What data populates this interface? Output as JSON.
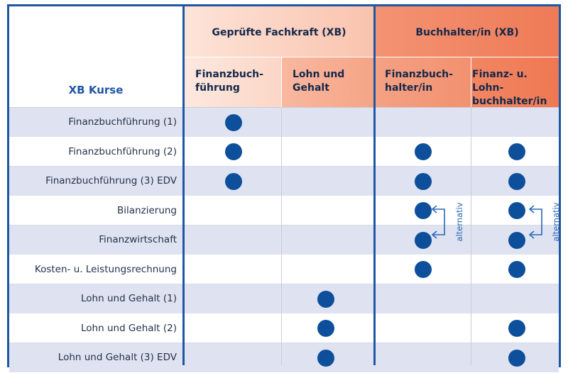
{
  "header": {
    "corner_label": "XB Kurse",
    "group_fachkraft": "Geprüfte Fachkraft (XB)",
    "group_buchhalter": "Buchhalter/in (XB)",
    "columns": [
      {
        "line1": "Finanzbuch-",
        "line2": "führung"
      },
      {
        "line1": "Lohn und",
        "line2": "Gehalt"
      },
      {
        "line1": "Finanzbuch-",
        "line2": "halter/in"
      },
      {
        "line1": "Finanz- u. Lohn-",
        "line2": "buchhalter/in"
      }
    ]
  },
  "rows": [
    {
      "label": "Finanzbuchführung (1)",
      "marks": [
        1,
        0,
        0,
        0
      ]
    },
    {
      "label": "Finanzbuchführung (2)",
      "marks": [
        1,
        0,
        1,
        1
      ]
    },
    {
      "label": "Finanzbuchführung (3) EDV",
      "marks": [
        1,
        0,
        1,
        1
      ]
    },
    {
      "label": "Bilanzierung",
      "marks": [
        0,
        0,
        1,
        1
      ]
    },
    {
      "label": "Finanzwirtschaft",
      "marks": [
        0,
        0,
        1,
        1
      ]
    },
    {
      "label": "Kosten- u. Leistungsrechnung",
      "marks": [
        0,
        0,
        1,
        1
      ]
    },
    {
      "label": "Lohn und Gehalt (1)",
      "marks": [
        0,
        1,
        0,
        0
      ]
    },
    {
      "label": "Lohn und Gehalt (2)",
      "marks": [
        0,
        1,
        0,
        1
      ]
    },
    {
      "label": "Lohn und Gehalt (3) EDV",
      "marks": [
        0,
        1,
        0,
        1
      ]
    }
  ],
  "alternativ_label": "alternativ",
  "colors": {
    "border": "#1f56a3",
    "dot": "#0d4f9a",
    "stripe": "#dfe3f1",
    "fachkraft_group": "#fbd3c4",
    "buchhalter_group": "#f07f5c"
  }
}
